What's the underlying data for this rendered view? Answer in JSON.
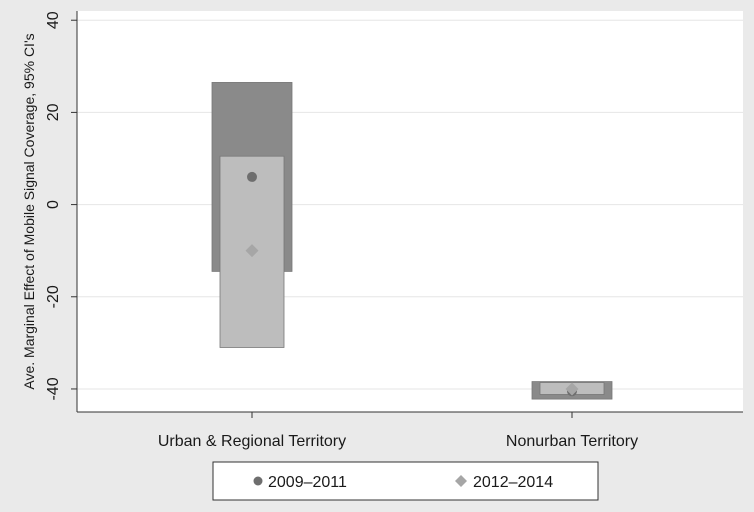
{
  "chart_data": {
    "type": "error-bar",
    "title": "",
    "xlabel": "",
    "ylabel": "Ave. Marginal Effect of Mobile Signal Coverage, 95% CI's",
    "ylim": [
      -45,
      42
    ],
    "yticks": [
      40,
      20,
      0,
      -20,
      -40
    ],
    "grid": "horizontal",
    "legend_position": "bottom",
    "categories": [
      "Urban & Regional Territory",
      "Nonurban Territory"
    ],
    "series": [
      {
        "name": "2009–2011",
        "marker": "circle",
        "point_color": "#6e6e6e",
        "band_color": "#8a8a8a",
        "points": [
          {
            "category": "Urban & Regional Territory",
            "estimate": 6,
            "ci_low": -14.5,
            "ci_high": 26.5
          },
          {
            "category": "Nonurban Territory",
            "estimate": -40.5,
            "ci_low": -42.2,
            "ci_high": -38.4
          }
        ]
      },
      {
        "name": "2012–2014",
        "marker": "diamond",
        "point_color": "#a6a6a6",
        "band_color": "#bdbdbd",
        "points": [
          {
            "category": "Urban & Regional Territory",
            "estimate": -10,
            "ci_low": -31,
            "ci_high": 10.5
          },
          {
            "category": "Nonurban Territory",
            "estimate": -40,
            "ci_low": -41.2,
            "ci_high": -38.6
          }
        ]
      }
    ]
  }
}
